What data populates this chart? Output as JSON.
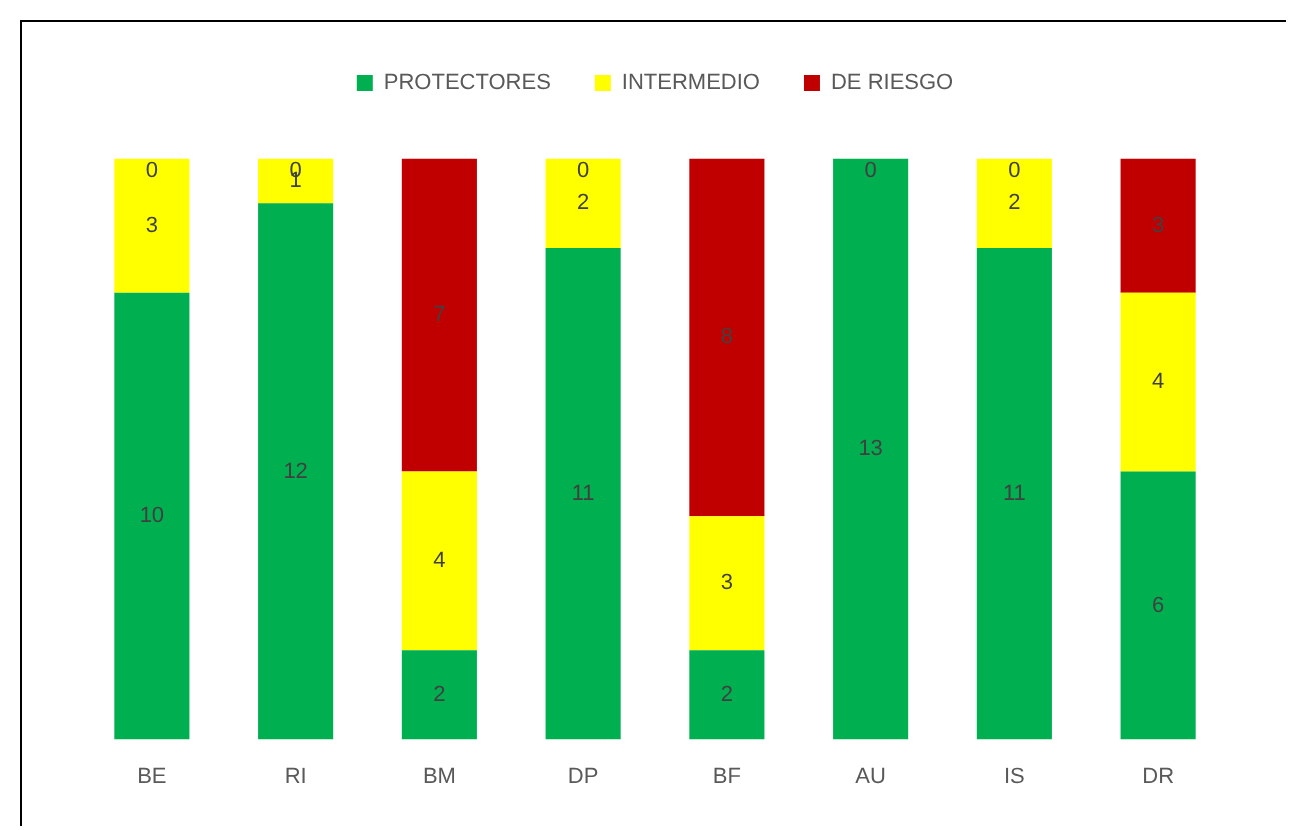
{
  "chart_data": {
    "type": "bar",
    "stacked": true,
    "legend": "top",
    "grid": false,
    "categories": [
      "BE",
      "RI",
      "BM",
      "DP",
      "BF",
      "AU",
      "IS",
      "DR"
    ],
    "series": [
      {
        "name": "PROTECTORES",
        "color": "#00b050",
        "values": [
          10,
          12,
          2,
          11,
          2,
          13,
          11,
          6
        ],
        "value_labels": [
          "10",
          "12",
          "2",
          "11",
          "2",
          "13",
          "11",
          "6"
        ]
      },
      {
        "name": "INTERMEDIO",
        "color": "#ffff00",
        "values": [
          3,
          1,
          4,
          2,
          3,
          0,
          2,
          4
        ],
        "value_labels": [
          "3",
          "1",
          "4",
          "2",
          "3",
          null,
          "2",
          "4"
        ]
      },
      {
        "name": "DE RIESGO",
        "color": "#c00000",
        "values": [
          0,
          0,
          7,
          0,
          8,
          0,
          0,
          3
        ],
        "value_labels": [
          "0",
          "0",
          "7",
          "0",
          "8",
          "0",
          "0",
          "3"
        ]
      }
    ]
  }
}
